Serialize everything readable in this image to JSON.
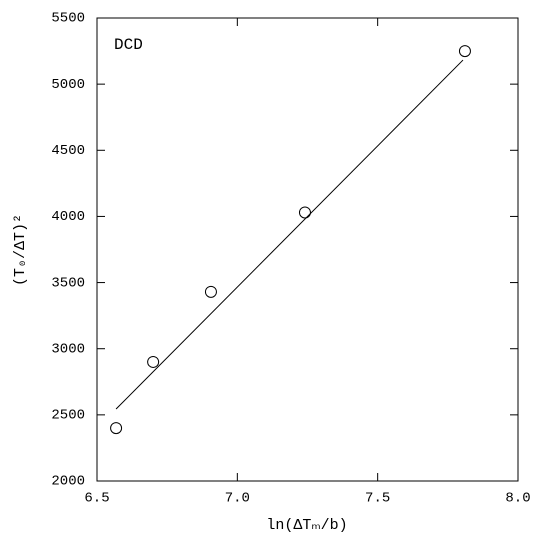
{
  "chart_data": {
    "type": "scatter",
    "xlabel": "ln(ΔTₘ/b)",
    "ylabel": "(T₀/ΔT)²",
    "annotation": "DCD",
    "x": [
      6.568,
      6.7,
      6.906,
      7.241,
      7.811
    ],
    "values": [
      2400,
      2900,
      3430,
      4030,
      5250
    ],
    "color": "#000000",
    "fit": {
      "x": [
        6.568,
        7.804
      ],
      "y": [
        2544,
        5182
      ]
    },
    "xlim": [
      6.5,
      8.0
    ],
    "xticks": [
      6.5,
      {
        "value": 7,
        "label": "7.0"
      },
      7.5,
      {
        "value": 8,
        "label": "8.0"
      }
    ],
    "ylim": [
      2000,
      5500
    ],
    "yticks": [
      2000,
      2500,
      3000,
      3500,
      4000,
      4500,
      5000,
      5500
    ],
    "grid": false
  }
}
